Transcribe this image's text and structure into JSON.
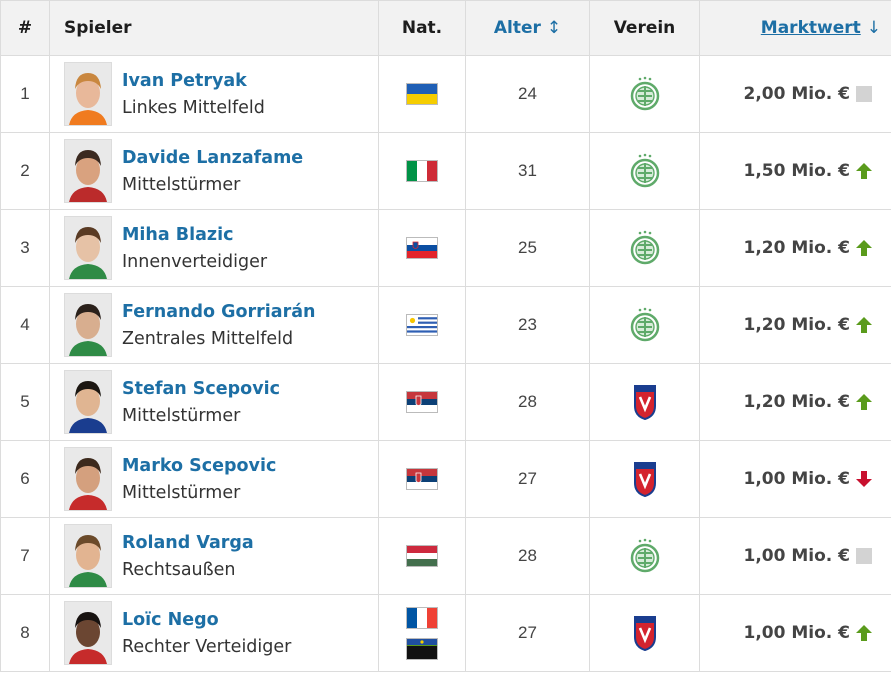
{
  "table": {
    "headers": {
      "num": "#",
      "player": "Spieler",
      "nat": "Nat.",
      "age": "Alter",
      "club": "Verein",
      "value": "Marktwert"
    },
    "rows": [
      {
        "num": "1",
        "name": "Ivan Petryak",
        "position": "Linkes Mittelfeld",
        "flags": [
          "ukraine"
        ],
        "age": "24",
        "club": "ferencvaros",
        "value": "2,00 Mio. €",
        "trend": "unchanged"
      },
      {
        "num": "2",
        "name": "Davide Lanzafame",
        "position": "Mittelstürmer",
        "flags": [
          "italy"
        ],
        "age": "31",
        "club": "ferencvaros",
        "value": "1,50 Mio. €",
        "trend": "up"
      },
      {
        "num": "3",
        "name": "Miha Blazic",
        "position": "Innenverteidiger",
        "flags": [
          "slovenia"
        ],
        "age": "25",
        "club": "ferencvaros",
        "value": "1,20 Mio. €",
        "trend": "up"
      },
      {
        "num": "4",
        "name": "Fernando Gorriarán",
        "position": "Zentrales Mittelfeld",
        "flags": [
          "uruguay"
        ],
        "age": "23",
        "club": "ferencvaros",
        "value": "1,20 Mio. €",
        "trend": "up"
      },
      {
        "num": "5",
        "name": "Stefan Scepovic",
        "position": "Mittelstürmer",
        "flags": [
          "serbia"
        ],
        "age": "28",
        "club": "videoton",
        "value": "1,20 Mio. €",
        "trend": "up"
      },
      {
        "num": "6",
        "name": "Marko Scepovic",
        "position": "Mittelstürmer",
        "flags": [
          "serbia"
        ],
        "age": "27",
        "club": "videoton",
        "value": "1,00 Mio. €",
        "trend": "down"
      },
      {
        "num": "7",
        "name": "Roland Varga",
        "position": "Rechtsaußen",
        "flags": [
          "hungary"
        ],
        "age": "28",
        "club": "ferencvaros",
        "value": "1,00 Mio. €",
        "trend": "unchanged"
      },
      {
        "num": "8",
        "name": "Loïc Nego",
        "position": "Rechter Verteidiger",
        "flags": [
          "france",
          "guadeloupe"
        ],
        "age": "27",
        "club": "videoton",
        "value": "1,00 Mio. €",
        "trend": "up"
      }
    ]
  },
  "colors": {
    "link": "#1d6fa5",
    "trend_up": "#5a9b1c",
    "trend_down": "#c8102e",
    "trend_unchanged": "#d3d3d3",
    "ferencvaros_green": "#5faa6a",
    "videoton_red": "#d4232e",
    "videoton_blue": "#1a3d8f"
  }
}
